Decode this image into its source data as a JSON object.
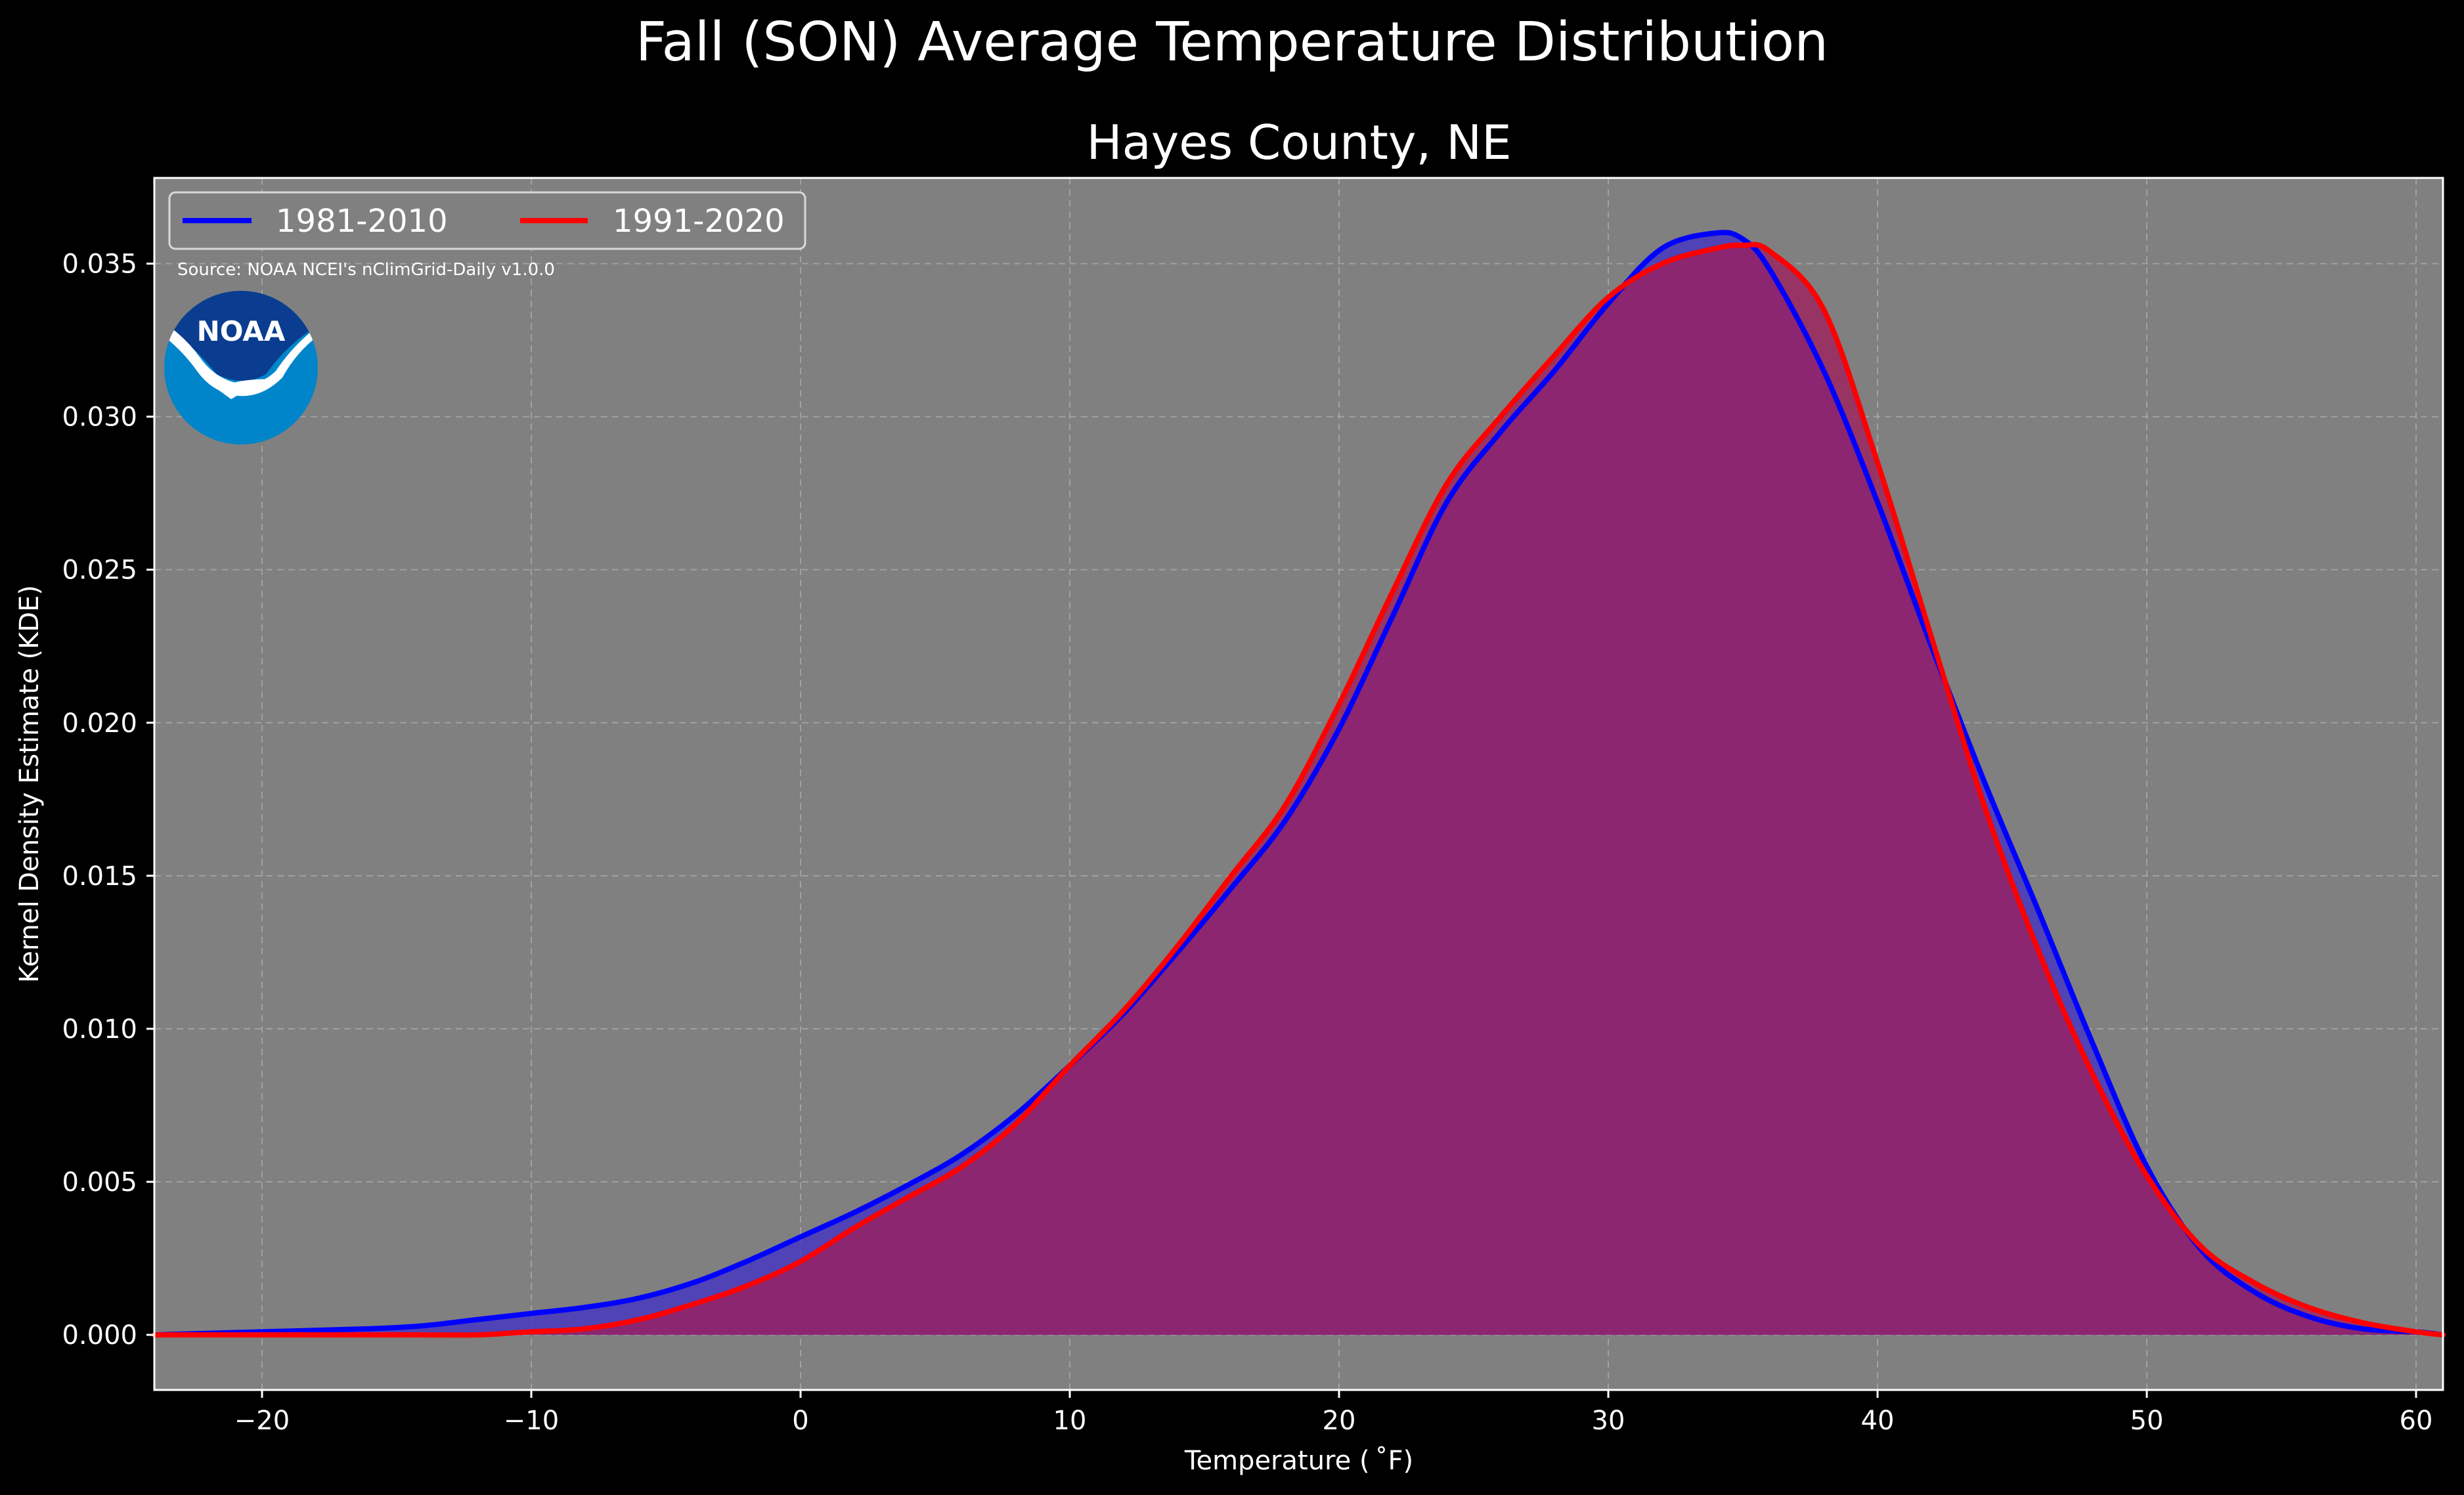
{
  "title": "Fall (SON) Average Temperature Distribution",
  "subtitle": "Hayes County, NE",
  "source": "Source: NOAA NCEI's nClimGrid-Daily v1.0.0",
  "logo_text": "NOAA",
  "colors": {
    "background": "#000000",
    "plot_background": "#808080",
    "series_1981": "#0000ff",
    "series_1991": "#ff0000",
    "fill_1981": "#3f2fc8",
    "fill_1991": "#9e1f5c"
  },
  "chart_data": {
    "type": "area",
    "title": "Fall (SON) Average Temperature Distribution",
    "subtitle": "Hayes County, NE",
    "xlabel": "Temperature ($^\\circ$F)",
    "xlabel_display": "Temperature ( ˚F)",
    "ylabel": "Kernel Density Estimate (KDE)",
    "xlim": [
      -24,
      61
    ],
    "ylim": [
      -0.0018,
      0.0378
    ],
    "x_ticks": [
      -20,
      -10,
      0,
      10,
      20,
      30,
      40,
      50,
      60
    ],
    "x_tick_labels": [
      "−20",
      "−10",
      "0",
      "10",
      "20",
      "30",
      "40",
      "50",
      "60"
    ],
    "y_ticks": [
      0.0,
      0.005,
      0.01,
      0.015,
      0.02,
      0.025,
      0.03,
      0.035
    ],
    "y_tick_labels": [
      "0.000",
      "0.005",
      "0.010",
      "0.015",
      "0.020",
      "0.025",
      "0.030",
      "0.035"
    ],
    "grid": true,
    "legend_position": "upper-left",
    "x": [
      -24,
      -20,
      -16,
      -14,
      -12,
      -10,
      -8,
      -6,
      -4,
      -2,
      0,
      2,
      4,
      6,
      8,
      10,
      12,
      14,
      16,
      18,
      20,
      22,
      24,
      26,
      28,
      30,
      32,
      34,
      35,
      36,
      38,
      40,
      42,
      44,
      46,
      48,
      50,
      52,
      54,
      56,
      58,
      60,
      61
    ],
    "series": [
      {
        "name": "1981-2010",
        "color": "#0000ff",
        "values": [
          0.0,
          0.0001,
          0.0002,
          0.0003,
          0.0005,
          0.0007,
          0.0009,
          0.0012,
          0.0017,
          0.0024,
          0.0032,
          0.004,
          0.0049,
          0.0059,
          0.0072,
          0.0088,
          0.0105,
          0.0125,
          0.0146,
          0.0168,
          0.0198,
          0.0235,
          0.0272,
          0.0295,
          0.0315,
          0.0337,
          0.0355,
          0.036,
          0.0358,
          0.0348,
          0.0315,
          0.0272,
          0.0225,
          0.018,
          0.0138,
          0.0095,
          0.0055,
          0.0028,
          0.0014,
          0.0006,
          0.0002,
          0.0001,
          0.0
        ]
      },
      {
        "name": "1991-2020",
        "color": "#ff0000",
        "values": [
          0.0,
          0.0,
          0.0,
          0.0,
          0.0,
          0.0001,
          0.0002,
          0.0005,
          0.001,
          0.0016,
          0.0024,
          0.0035,
          0.0045,
          0.0055,
          0.0069,
          0.0088,
          0.0106,
          0.0127,
          0.015,
          0.0173,
          0.0206,
          0.0243,
          0.0278,
          0.03,
          0.032,
          0.0339,
          0.035,
          0.0355,
          0.0356,
          0.0354,
          0.0335,
          0.0285,
          0.0228,
          0.0172,
          0.0125,
          0.0085,
          0.0052,
          0.0029,
          0.0017,
          0.0009,
          0.0004,
          0.0001,
          0.0
        ]
      }
    ]
  }
}
